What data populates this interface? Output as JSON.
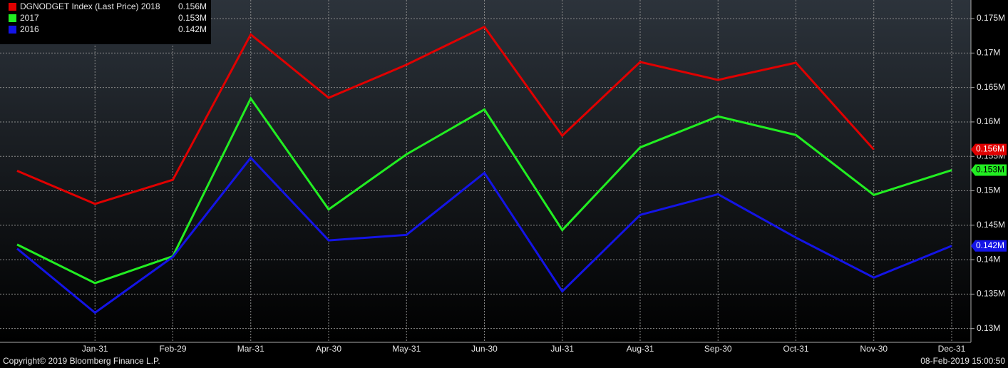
{
  "chart_data": {
    "type": "line",
    "categories": [
      null,
      "Jan-31",
      "Feb-29",
      "Mar-31",
      "Apr-30",
      "May-31",
      "Jun-30",
      "Jul-31",
      "Aug-31",
      "Sep-30",
      "Oct-31",
      "Nov-30",
      "Dec-31"
    ],
    "series": [
      {
        "name": "DGNODGET Index (Last Price) 2018",
        "color": "#e00000",
        "last_label": "0.156M",
        "values": [
          0.1529,
          0.1481,
          0.1516,
          0.1727,
          0.1635,
          0.1683,
          0.1738,
          0.158,
          0.1687,
          0.1661,
          0.1686,
          0.156,
          null
        ]
      },
      {
        "name": "2017",
        "color": "#22ee22",
        "last_label": "0.153M",
        "values": [
          0.1422,
          0.1366,
          0.1405,
          0.1634,
          0.1473,
          0.1553,
          0.1618,
          0.1443,
          0.1563,
          0.1608,
          0.1581,
          0.1494,
          0.153
        ]
      },
      {
        "name": "2016",
        "color": "#1414e6",
        "last_label": "0.142M",
        "values": [
          0.1416,
          0.1323,
          0.1404,
          0.1548,
          0.1428,
          0.1436,
          0.1526,
          0.1354,
          0.1465,
          0.1495,
          0.1432,
          0.1374,
          0.142
        ]
      }
    ],
    "ylim": [
      0.128,
      0.1777
    ],
    "yticks": [
      {
        "value": 0.13,
        "label": "0.13M"
      },
      {
        "value": 0.135,
        "label": "0.135M"
      },
      {
        "value": 0.14,
        "label": "0.14M"
      },
      {
        "value": 0.145,
        "label": "0.145M"
      },
      {
        "value": 0.15,
        "label": "0.15M"
      },
      {
        "value": 0.155,
        "label": "0.155M"
      },
      {
        "value": 0.16,
        "label": "0.16M"
      },
      {
        "value": 0.165,
        "label": "0.165M"
      },
      {
        "value": 0.17,
        "label": "0.17M"
      },
      {
        "value": 0.175,
        "label": "0.175M"
      }
    ],
    "grid": true,
    "legend": "top-left",
    "footer": {
      "left": "Copyright© 2019 Bloomberg Finance L.P.",
      "right": "08-Feb-2019 15:00:50"
    }
  }
}
